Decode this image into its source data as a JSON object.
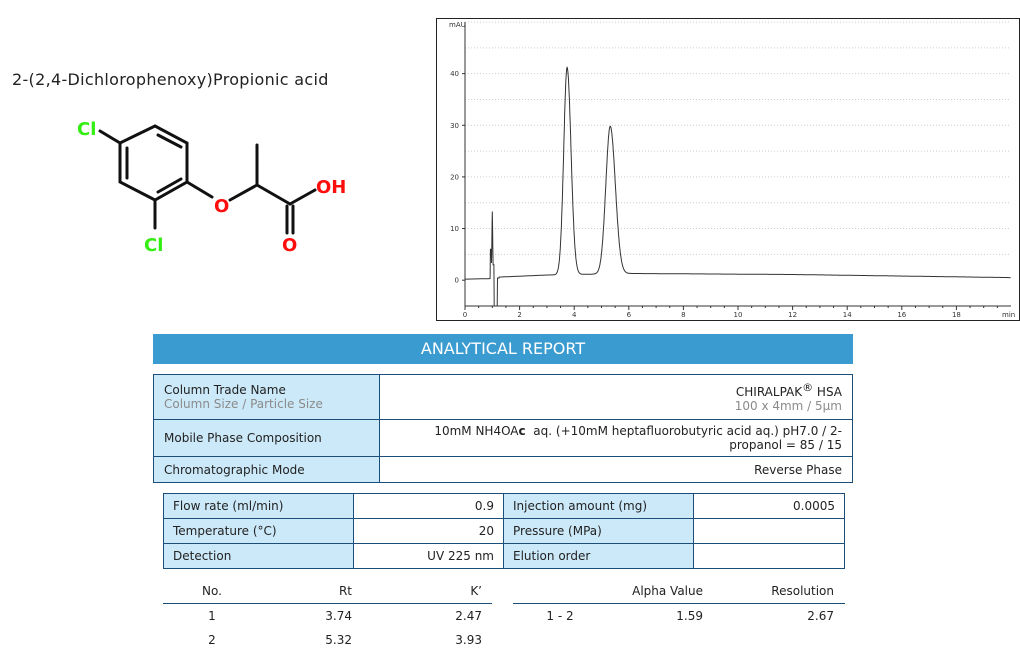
{
  "compound": {
    "name": "2-(2,4-Dichlorophenoxy)Propionic acid",
    "atom_labels": {
      "cl_top": "Cl",
      "cl_bottom": "Cl",
      "ether_o": "O",
      "hydroxyl": "OH",
      "carbonyl_o": "O"
    },
    "colors": {
      "chlorine": "#33ee11",
      "oxygen": "#ff0d0d",
      "bond": "#111111"
    }
  },
  "chart_data": {
    "type": "line",
    "ylabel": "mAU",
    "xlabel": "min",
    "xlim": [
      0,
      20
    ],
    "ylim": [
      -5,
      50
    ],
    "x_ticks": [
      "0",
      "2",
      "4",
      "6",
      "8",
      "10",
      "12",
      "14",
      "16",
      "18"
    ],
    "y_ticks": [
      "0",
      "10",
      "20",
      "30",
      "40"
    ],
    "grid": "dotted horizontal",
    "peaks": [
      {
        "rt": 3.74,
        "height": 41.2
      },
      {
        "rt": 5.32,
        "height": 29.8
      }
    ],
    "solvent_front": {
      "time": 1.0,
      "max": 13.3,
      "min": -5
    },
    "baseline": [
      [
        0,
        0.2
      ],
      [
        0.9,
        0.3
      ],
      [
        1.25,
        0.6
      ],
      [
        3,
        1.0
      ],
      [
        6,
        1.3
      ],
      [
        12,
        1.1
      ],
      [
        16,
        0.8
      ],
      [
        20,
        0.5
      ]
    ]
  },
  "report": {
    "banner": "ANALYTICAL REPORT",
    "column": {
      "label": "Column Trade Name",
      "sublabel": "Column Size / Particle Size",
      "value": "CHIRALPAK",
      "value_mark": "®",
      "value_suffix": " HSA",
      "subvalue": "100 x 4mm / 5µm"
    },
    "mobile_phase": {
      "label": "Mobile Phase Composition",
      "value_a": "10mM NH4OA",
      "value_b": "c",
      "value_c": "  aq. (+10mM heptafluorobutyric acid aq.) pH7.0 / 2-propanol = 85 / 15"
    },
    "mode": {
      "label": "Chromatographic Mode",
      "value": "Reverse Phase"
    },
    "conditions": [
      [
        {
          "label": "Flow rate (ml/min)",
          "value": "0.9"
        },
        {
          "label": "Injection amount (mg)",
          "value": "0.0005"
        }
      ],
      [
        {
          "label": "Temperature (°C)",
          "value": "20"
        },
        {
          "label": "Pressure (MPa)",
          "value": ""
        }
      ],
      [
        {
          "label": "Detection",
          "value": "UV 225 nm"
        },
        {
          "label": "Elution order",
          "value": ""
        }
      ]
    ],
    "results": {
      "headers": {
        "no": "No.",
        "rt": "Rt",
        "k": "K’",
        "pair": "",
        "alpha": "Alpha Value",
        "resolution": "Resolution"
      },
      "rows": [
        {
          "no": "1",
          "rt": "3.74",
          "k": "2.47"
        },
        {
          "no": "2",
          "rt": "5.32",
          "k": "3.93"
        }
      ],
      "pair": {
        "pair": "1 - 2",
        "alpha": "1.59",
        "resolution": "2.67"
      }
    },
    "colors": {
      "banner": "#3a9bd0",
      "label_bg": "#cce9f9",
      "border": "#1d4e7a"
    }
  }
}
